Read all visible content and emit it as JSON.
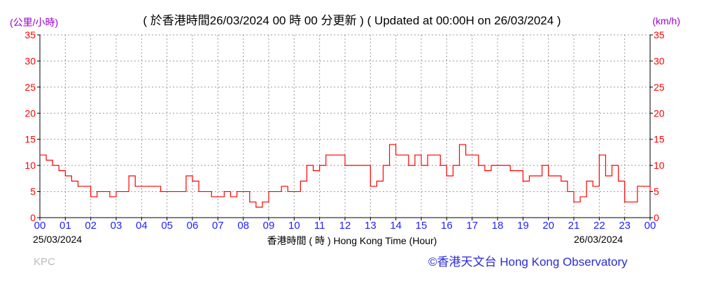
{
  "chart_data": {
    "type": "line",
    "title": "( 於香港時間26/03/2024 00 時 00 分更新 ) ( Updated at 00:00H on 26/03/2024 )",
    "ylabel_left": "(公里/小時)",
    "ylabel_right": "(km/h)",
    "xlabel": "香港時間 ( 時 )  Hong Kong Time (Hour)",
    "start_date": "25/03/2024",
    "end_date": "26/03/2024",
    "ylim": [
      0,
      35
    ],
    "yticks": [
      "0",
      "5",
      "10",
      "15",
      "20",
      "25",
      "30",
      "35"
    ],
    "xticks": [
      "00",
      "01",
      "02",
      "03",
      "04",
      "05",
      "06",
      "07",
      "08",
      "09",
      "10",
      "11",
      "12",
      "13",
      "14",
      "15",
      "16",
      "17",
      "18",
      "19",
      "20",
      "21",
      "22",
      "23",
      "00"
    ],
    "grid": true,
    "line_color": "#ff0000",
    "x_hours": [
      0,
      0.25,
      0.5,
      0.75,
      1,
      1.25,
      1.5,
      1.75,
      2,
      2.25,
      2.5,
      2.75,
      3,
      3.25,
      3.5,
      3.75,
      4,
      4.25,
      4.5,
      4.75,
      5,
      5.25,
      5.5,
      5.75,
      6,
      6.25,
      6.5,
      6.75,
      7,
      7.25,
      7.5,
      7.75,
      8,
      8.25,
      8.5,
      8.75,
      9,
      9.25,
      9.5,
      9.75,
      10,
      10.25,
      10.5,
      10.75,
      11,
      11.25,
      11.5,
      11.75,
      12,
      12.25,
      12.5,
      12.75,
      13,
      13.25,
      13.5,
      13.75,
      14,
      14.25,
      14.5,
      14.75,
      15,
      15.25,
      15.5,
      15.75,
      16,
      16.25,
      16.5,
      16.75,
      17,
      17.25,
      17.5,
      17.75,
      18,
      18.25,
      18.5,
      18.75,
      19,
      19.25,
      19.5,
      19.75,
      20,
      20.25,
      20.5,
      20.75,
      21,
      21.25,
      21.5,
      21.75,
      22,
      22.25,
      22.5,
      22.75,
      23,
      23.25,
      23.5,
      23.75,
      24
    ],
    "values": [
      12,
      11,
      10,
      9,
      8,
      7,
      6,
      6,
      4,
      5,
      5,
      4,
      5,
      5,
      8,
      6,
      6,
      6,
      6,
      5,
      5,
      5,
      5,
      8,
      7,
      5,
      5,
      4,
      4,
      5,
      4,
      5,
      5,
      3,
      2,
      3,
      5,
      5,
      6,
      5,
      5,
      7,
      10,
      9,
      10,
      12,
      12,
      12,
      10,
      10,
      10,
      10,
      6,
      7,
      10,
      14,
      12,
      12,
      10,
      12,
      10,
      12,
      12,
      10,
      8,
      10,
      14,
      12,
      12,
      10,
      9,
      10,
      10,
      10,
      9,
      9,
      7,
      8,
      8,
      10,
      8,
      8,
      7,
      5,
      3,
      4,
      7,
      6,
      12,
      8,
      10,
      7,
      3,
      3,
      6,
      6,
      5
    ]
  },
  "footer": {
    "station": "KPC",
    "credit": "©香港天文台 Hong Kong Observatory"
  }
}
